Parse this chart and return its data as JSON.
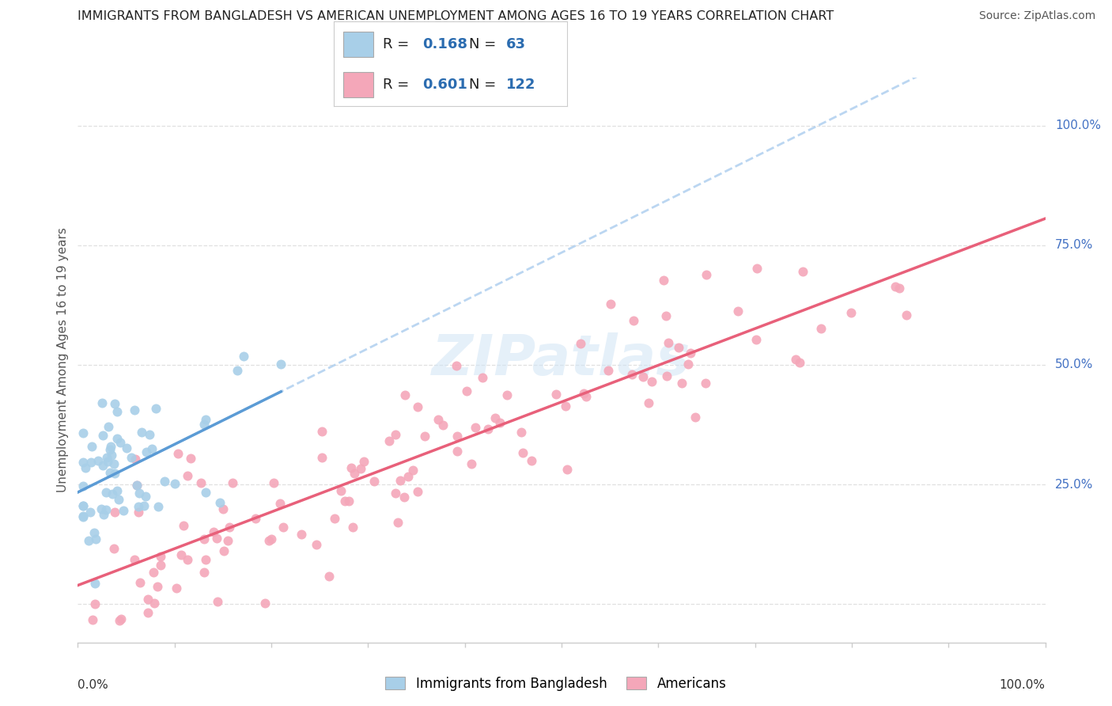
{
  "title": "IMMIGRANTS FROM BANGLADESH VS AMERICAN UNEMPLOYMENT AMONG AGES 16 TO 19 YEARS CORRELATION CHART",
  "source": "Source: ZipAtlas.com",
  "ylabel": "Unemployment Among Ages 16 to 19 years",
  "xlim": [
    0,
    1
  ],
  "ylim": [
    -0.08,
    1.1
  ],
  "ytick_values": [
    0.0,
    0.25,
    0.5,
    0.75,
    1.0
  ],
  "ytick_labels": [
    "",
    "25.0%",
    "50.0%",
    "75.0%",
    "100.0%"
  ],
  "legend1_R": "0.168",
  "legend1_N": "63",
  "legend2_R": "0.601",
  "legend2_N": "122",
  "blue_color": "#a8cfe8",
  "pink_color": "#f4a7b9",
  "blue_line_color": "#5b9bd5",
  "pink_line_color": "#e8607a",
  "dashed_line_color": "#aaccee",
  "bg_color": "#ffffff",
  "watermark_color": "#d0e4f5",
  "grid_color": "#e0e0e0",
  "tick_color": "#4472c4",
  "title_color": "#222222",
  "source_color": "#555555",
  "ylabel_color": "#555555"
}
